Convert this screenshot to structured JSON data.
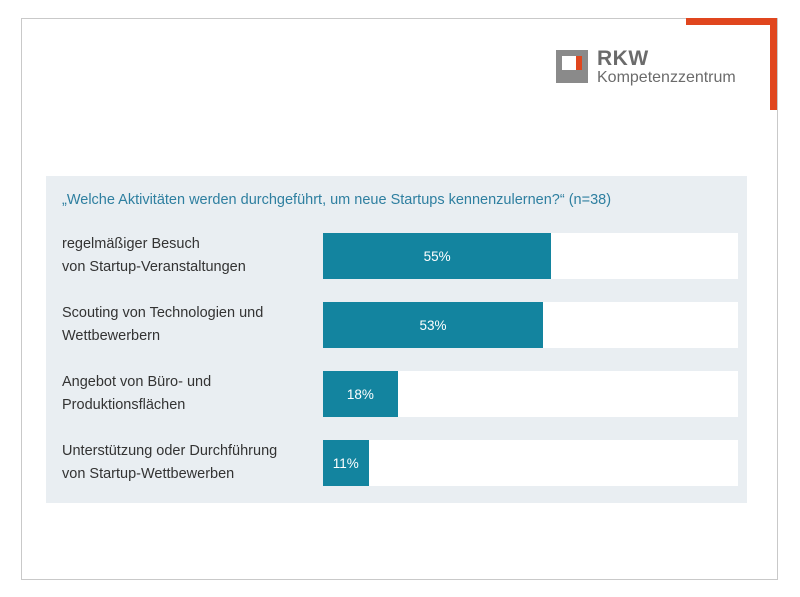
{
  "brand": {
    "name": "RKW",
    "subtitle": "Kompetenzzentrum",
    "accent_color": "#e0461e",
    "logo_grey": "#8a8a8a"
  },
  "chart_data": {
    "type": "bar",
    "orientation": "horizontal",
    "title": "„Welche Aktivitäten werden durchgeführt, um neue Startups kennenzulernen?“ (n=38)",
    "categories": [
      [
        "regelmäßiger Besuch",
        "von Startup-Veranstaltungen"
      ],
      [
        "Scouting von Technologien und",
        "Wettbewerbern"
      ],
      [
        "Angebot von Büro- und",
        "Produktionsflächen"
      ],
      [
        "Unterstützung oder Durchführung",
        "von Startup-Wettbewerben"
      ]
    ],
    "values": [
      55,
      53,
      18,
      11
    ],
    "value_labels": [
      "55%",
      "53%",
      "18%",
      "11%"
    ],
    "xlim": [
      0,
      100
    ],
    "unit": "%",
    "bar_color": "#13849f",
    "track_color": "#ffffff",
    "grid": false,
    "legend": "none"
  }
}
